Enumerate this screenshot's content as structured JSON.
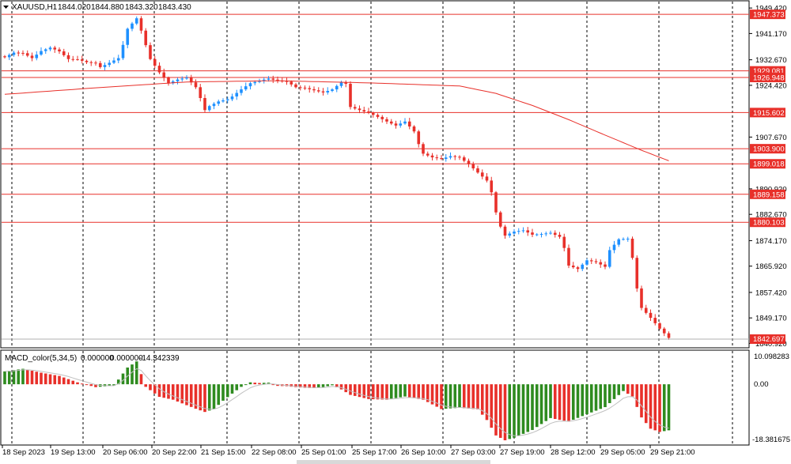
{
  "header": {
    "symbol": "XAUUSD,H1",
    "open": "1844.020",
    "high": "1844.880",
    "low": "1843.320",
    "close": "1843.430"
  },
  "macd": {
    "label": "MACD_color(5,34,5)",
    "v1": "0.000000",
    "v2": "0.000000",
    "v3": "-14.342339",
    "axis_top": "10.098283",
    "axis_zero": "0.00",
    "axis_bottom": "-18.381675"
  },
  "price_axis": [
    "1949.420",
    "1941.170",
    "1932.670",
    "1924.420",
    "1907.670",
    "1890.920",
    "1882.670",
    "1874.170",
    "1865.920",
    "1857.420",
    "1849.170",
    "1840.920"
  ],
  "levels": [
    {
      "label": "1947.373",
      "value": 1947.373
    },
    {
      "label": "1929.081",
      "value": 1929.081
    },
    {
      "label": "1926.948",
      "value": 1926.948
    },
    {
      "label": "1915.602",
      "value": 1915.602
    },
    {
      "label": "1903.900",
      "value": 1903.9
    },
    {
      "label": "1899.018",
      "value": 1899.018
    },
    {
      "label": "1889.158",
      "value": 1889.158
    },
    {
      "label": "1880.103",
      "value": 1880.103
    }
  ],
  "current_price": "1842.697",
  "time_axis": [
    "18 Sep 2023",
    "19 Sep 13:00",
    "20 Sep 06:00",
    "20 Sep 22:00",
    "21 Sep 15:00",
    "22 Sep 08:00",
    "25 Sep 01:00",
    "25 Sep 17:00",
    "26 Sep 10:00",
    "27 Sep 03:00",
    "27 Sep 19:00",
    "28 Sep 12:00",
    "29 Sep 05:00",
    "29 Sep 21:00"
  ],
  "colors": {
    "up": "#1e90ff",
    "down": "#e8302a",
    "level": "#e8302a",
    "ma": "#e8302a",
    "macd_up": "#2e8b1f",
    "macd_down": "#e8302a"
  },
  "chart_data": {
    "type": "candlestick",
    "symbol": "XAUUSD,H1",
    "ylim": [
      1839.5,
      1951.5
    ],
    "close_path": [
      [
        0,
        1933.5
      ],
      [
        2,
        1935
      ],
      [
        4,
        1934.8
      ],
      [
        6,
        1933.2
      ],
      [
        8,
        1935.5
      ],
      [
        10,
        1936.6
      ],
      [
        12,
        1935.4
      ],
      [
        14,
        1932.9
      ],
      [
        16,
        1932.8
      ],
      [
        18,
        1931.9
      ],
      [
        20,
        1931.6
      ],
      [
        21,
        1930.3
      ],
      [
        23,
        1931.7
      ],
      [
        25,
        1933.2
      ],
      [
        26,
        1937.5
      ],
      [
        27,
        1942.7
      ],
      [
        28,
        1944.4
      ],
      [
        29,
        1946.1
      ],
      [
        30,
        1942.1
      ],
      [
        31,
        1937.4
      ],
      [
        32,
        1932.9
      ],
      [
        34,
        1928.6
      ],
      [
        36,
        1925.1
      ],
      [
        38,
        1926.3
      ],
      [
        40,
        1926.9
      ],
      [
        42,
        1923.8
      ],
      [
        43,
        1920.3
      ],
      [
        44,
        1916.4
      ],
      [
        45,
        1917.7
      ],
      [
        47,
        1919.2
      ],
      [
        49,
        1919.9
      ],
      [
        50,
        1920.8
      ],
      [
        52,
        1923.1
      ],
      [
        54,
        1925.1
      ],
      [
        56,
        1925.9
      ],
      [
        58,
        1926.6
      ],
      [
        60,
        1925.9
      ],
      [
        62,
        1925.6
      ],
      [
        64,
        1923.8
      ],
      [
        66,
        1923.5
      ],
      [
        68,
        1922.8
      ],
      [
        70,
        1922.1
      ],
      [
        72,
        1923.1
      ],
      [
        74,
        1925.3
      ],
      [
        75,
        1924.9
      ],
      [
        76,
        1917.4
      ],
      [
        78,
        1916.4
      ],
      [
        80,
        1915.5
      ],
      [
        82,
        1914.2
      ],
      [
        84,
        1912.7
      ],
      [
        86,
        1911.4
      ],
      [
        88,
        1912.7
      ],
      [
        90,
        1909.5
      ],
      [
        91,
        1905.4
      ],
      [
        92,
        1902.3
      ],
      [
        94,
        1901.1
      ],
      [
        96,
        1900.6
      ],
      [
        98,
        1901.5
      ],
      [
        100,
        1901.1
      ],
      [
        102,
        1898.9
      ],
      [
        104,
        1896.2
      ],
      [
        106,
        1893.6
      ],
      [
        107,
        1889.8
      ],
      [
        108,
        1883.3
      ],
      [
        109,
        1878.7
      ],
      [
        110,
        1875.8
      ],
      [
        112,
        1877.1
      ],
      [
        114,
        1877.5
      ],
      [
        116,
        1876.1
      ],
      [
        118,
        1876.3
      ],
      [
        120,
        1876.7
      ],
      [
        122,
        1875.4
      ],
      [
        123,
        1871.8
      ],
      [
        124,
        1866.1
      ],
      [
        126,
        1865
      ],
      [
        128,
        1867.8
      ],
      [
        130,
        1867.2
      ],
      [
        132,
        1865.7
      ],
      [
        133,
        1871.1
      ],
      [
        135,
        1874.6
      ],
      [
        137,
        1874.8
      ],
      [
        138,
        1868.6
      ],
      [
        139,
        1858.7
      ],
      [
        140,
        1852.4
      ],
      [
        142,
        1849.2
      ],
      [
        144,
        1845.7
      ],
      [
        146,
        1842.7
      ]
    ],
    "moving_average": [
      [
        0,
        1921.5
      ],
      [
        20,
        1923.6
      ],
      [
        40,
        1925.5
      ],
      [
        60,
        1925.9
      ],
      [
        80,
        1925.2
      ],
      [
        100,
        1924.2
      ],
      [
        108,
        1921.8
      ],
      [
        116,
        1917.9
      ],
      [
        124,
        1913.3
      ],
      [
        132,
        1908.3
      ],
      [
        140,
        1903.4
      ],
      [
        146,
        1900.0
      ]
    ],
    "macd_histogram": [
      [
        0,
        4
      ],
      [
        4,
        4.8
      ],
      [
        8,
        3.6
      ],
      [
        12,
        2.6
      ],
      [
        16,
        0.6
      ],
      [
        20,
        -0.9
      ],
      [
        24,
        -0.4
      ],
      [
        27,
        5.2
      ],
      [
        29,
        7.1
      ],
      [
        31,
        -0.8
      ],
      [
        34,
        -3.9
      ],
      [
        37,
        -4.8
      ],
      [
        40,
        -6.5
      ],
      [
        42,
        -7.6
      ],
      [
        44,
        -8.6
      ],
      [
        46,
        -7.7
      ],
      [
        48,
        -5.1
      ],
      [
        50,
        -2.9
      ],
      [
        52,
        -0.8
      ],
      [
        54,
        0.6
      ],
      [
        56,
        0.4
      ],
      [
        58,
        0.5
      ],
      [
        60,
        -0.5
      ],
      [
        62,
        -0.6
      ],
      [
        64,
        -0.9
      ],
      [
        66,
        -1.1
      ],
      [
        68,
        -1.2
      ],
      [
        70,
        -0.9
      ],
      [
        72,
        -0.3
      ],
      [
        74,
        -1.6
      ],
      [
        76,
        -3.3
      ],
      [
        80,
        -4.6
      ],
      [
        84,
        -4.8
      ],
      [
        88,
        -3.8
      ],
      [
        92,
        -4.8
      ],
      [
        96,
        -7.7
      ],
      [
        100,
        -7.3
      ],
      [
        104,
        -7.8
      ],
      [
        106,
        -11.1
      ],
      [
        108,
        -15.9
      ],
      [
        110,
        -17.4
      ],
      [
        112,
        -16.6
      ],
      [
        116,
        -14.2
      ],
      [
        120,
        -10.5
      ],
      [
        124,
        -11.6
      ],
      [
        128,
        -9.3
      ],
      [
        132,
        -7.1
      ],
      [
        136,
        -2.1
      ],
      [
        138,
        -3.8
      ],
      [
        140,
        -10.3
      ],
      [
        142,
        -13.8
      ],
      [
        144,
        -14.8
      ],
      [
        146,
        -14.3
      ]
    ],
    "macd_ylim": [
      -18.381675,
      10.098283
    ],
    "grid": true,
    "ma_color": "#e8302a"
  }
}
